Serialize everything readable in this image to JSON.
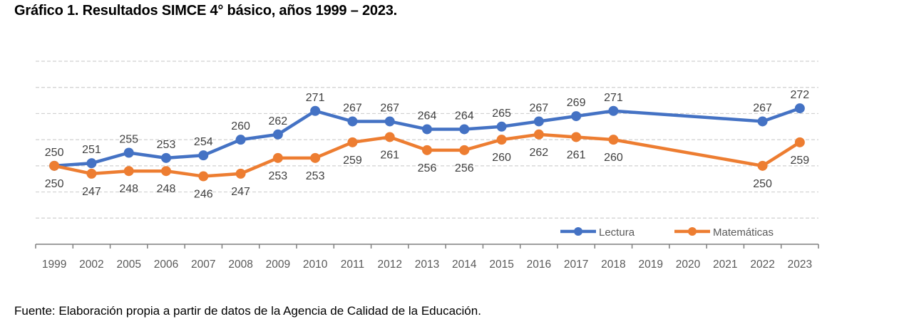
{
  "title": "Gráfico 1. Resultados SIMCE 4° básico, años 1999 – 2023.",
  "source": "Fuente: Elaboración propia a partir de datos de la Agencia de Calidad de la Educación.",
  "chart_data": {
    "type": "line",
    "title": "Gráfico 1. Resultados SIMCE 4° básico, años 1999 – 2023.",
    "xlabel": "",
    "ylabel": "",
    "categories": [
      "1999",
      "2002",
      "2005",
      "2006",
      "2007",
      "2008",
      "2009",
      "2010",
      "2011",
      "2012",
      "2013",
      "2014",
      "2015",
      "2016",
      "2017",
      "2018",
      "2019",
      "2020",
      "2021",
      "2022",
      "2023"
    ],
    "ylim": [
      220,
      290
    ],
    "y_axis_visible": false,
    "grid": true,
    "grid_style": "dashed",
    "gridlines": [
      230,
      240,
      250,
      260,
      270,
      280,
      290
    ],
    "legend_position": "bottom-right",
    "data_labels": true,
    "series": [
      {
        "name": "Lectura",
        "color": "#4472C4",
        "values": [
          250,
          251,
          255,
          253,
          254,
          260,
          262,
          271,
          267,
          267,
          264,
          264,
          265,
          267,
          269,
          271,
          null,
          null,
          null,
          267,
          272
        ],
        "label_position": "above"
      },
      {
        "name": "Matemáticas",
        "color": "#ED7D31",
        "values": [
          250,
          247,
          248,
          248,
          246,
          247,
          253,
          253,
          259,
          261,
          256,
          256,
          260,
          262,
          261,
          260,
          null,
          null,
          null,
          250,
          259
        ],
        "label_position": "below"
      }
    ]
  }
}
